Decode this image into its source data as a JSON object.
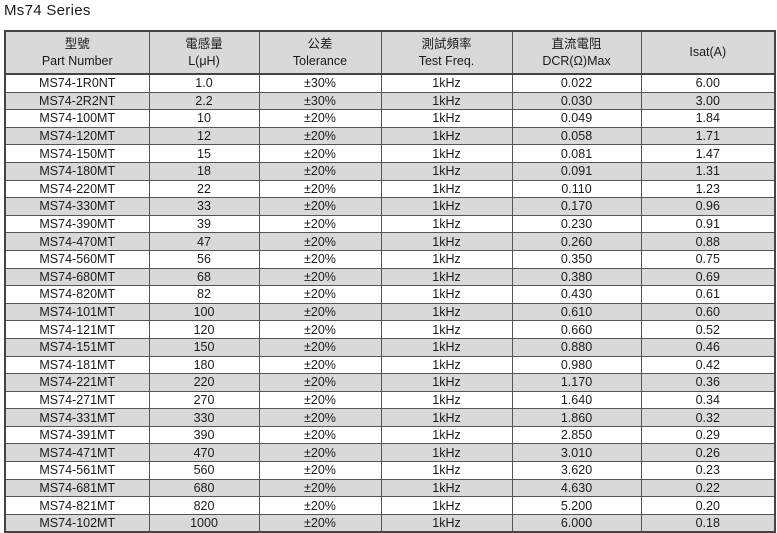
{
  "title": "Ms74  Series",
  "headers": [
    {
      "zh": "型號",
      "en": "Part Number"
    },
    {
      "zh": "電感量",
      "en": "L(μH)"
    },
    {
      "zh": "公差",
      "en": "Tolerance"
    },
    {
      "zh": "測試頻率",
      "en": "Test Freq."
    },
    {
      "zh": "直流電阻",
      "en": "DCR(Ω)Max"
    },
    {
      "zh": "",
      "en": "Isat(A)"
    }
  ],
  "rows": [
    [
      "MS74-1R0NT",
      "1.0",
      "±30%",
      "1kHz",
      "0.022",
      "6.00"
    ],
    [
      "MS74-2R2NT",
      "2.2",
      "±30%",
      "1kHz",
      "0.030",
      "3.00"
    ],
    [
      "MS74-100MT",
      "10",
      "±20%",
      "1kHz",
      "0.049",
      "1.84"
    ],
    [
      "MS74-120MT",
      "12",
      "±20%",
      "1kHz",
      "0.058",
      "1.71"
    ],
    [
      "MS74-150MT",
      "15",
      "±20%",
      "1kHz",
      "0.081",
      "1.47"
    ],
    [
      "MS74-180MT",
      "18",
      "±20%",
      "1kHz",
      "0.091",
      "1.31"
    ],
    [
      "MS74-220MT",
      "22",
      "±20%",
      "1kHz",
      "0.110",
      "1.23"
    ],
    [
      "MS74-330MT",
      "33",
      "±20%",
      "1kHz",
      "0.170",
      "0.96"
    ],
    [
      "MS74-390MT",
      "39",
      "±20%",
      "1kHz",
      "0.230",
      "0.91"
    ],
    [
      "MS74-470MT",
      "47",
      "±20%",
      "1kHz",
      "0.260",
      "0.88"
    ],
    [
      "MS74-560MT",
      "56",
      "±20%",
      "1kHz",
      "0.350",
      "0.75"
    ],
    [
      "MS74-680MT",
      "68",
      "±20%",
      "1kHz",
      "0.380",
      "0.69"
    ],
    [
      "MS74-820MT",
      "82",
      "±20%",
      "1kHz",
      "0.430",
      "0.61"
    ],
    [
      "MS74-101MT",
      "100",
      "±20%",
      "1kHz",
      "0.610",
      "0.60"
    ],
    [
      "MS74-121MT",
      "120",
      "±20%",
      "1kHz",
      "0.660",
      "0.52"
    ],
    [
      "MS74-151MT",
      "150",
      "±20%",
      "1kHz",
      "0.880",
      "0.46"
    ],
    [
      "MS74-181MT",
      "180",
      "±20%",
      "1kHz",
      "0.980",
      "0.42"
    ],
    [
      "MS74-221MT",
      "220",
      "±20%",
      "1kHz",
      "1.170",
      "0.36"
    ],
    [
      "MS74-271MT",
      "270",
      "±20%",
      "1kHz",
      "1.640",
      "0.34"
    ],
    [
      "MS74-331MT",
      "330",
      "±20%",
      "1kHz",
      "1.860",
      "0.32"
    ],
    [
      "MS74-391MT",
      "390",
      "±20%",
      "1kHz",
      "2.850",
      "0.29"
    ],
    [
      "MS74-471MT",
      "470",
      "±20%",
      "1kHz",
      "3.010",
      "0.26"
    ],
    [
      "MS74-561MT",
      "560",
      "±20%",
      "1kHz",
      "3.620",
      "0.23"
    ],
    [
      "MS74-681MT",
      "680",
      "±20%",
      "1kHz",
      "4.630",
      "0.22"
    ],
    [
      "MS74-821MT",
      "820",
      "±20%",
      "1kHz",
      "5.200",
      "0.20"
    ],
    [
      "MS74-102MT",
      "1000",
      "±20%",
      "1kHz",
      "6.000",
      "0.18"
    ]
  ]
}
